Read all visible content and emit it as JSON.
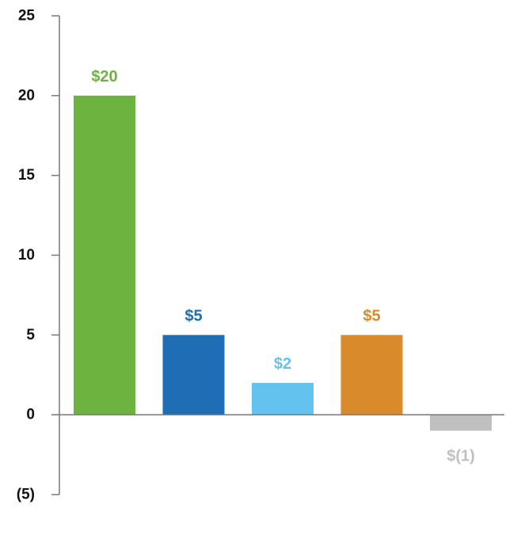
{
  "chart_data": {
    "type": "bar",
    "title": "",
    "xlabel": "",
    "ylabel": "",
    "ylim": [
      -5,
      25
    ],
    "y_ticks": [
      25,
      20,
      15,
      10,
      5,
      0,
      -5
    ],
    "y_tick_labels": [
      "25",
      "20",
      "15",
      "10",
      "5",
      "0",
      "(5)"
    ],
    "values": [
      20,
      5,
      2,
      5,
      -1
    ],
    "data_labels": [
      "$20",
      "$5",
      "$2",
      "$5",
      "$(1)"
    ],
    "colors": [
      "#6db33f",
      "#1f6db5",
      "#63c3ee",
      "#d98a2a",
      "#c0c0c0"
    ],
    "grid": false,
    "legend": "none"
  }
}
